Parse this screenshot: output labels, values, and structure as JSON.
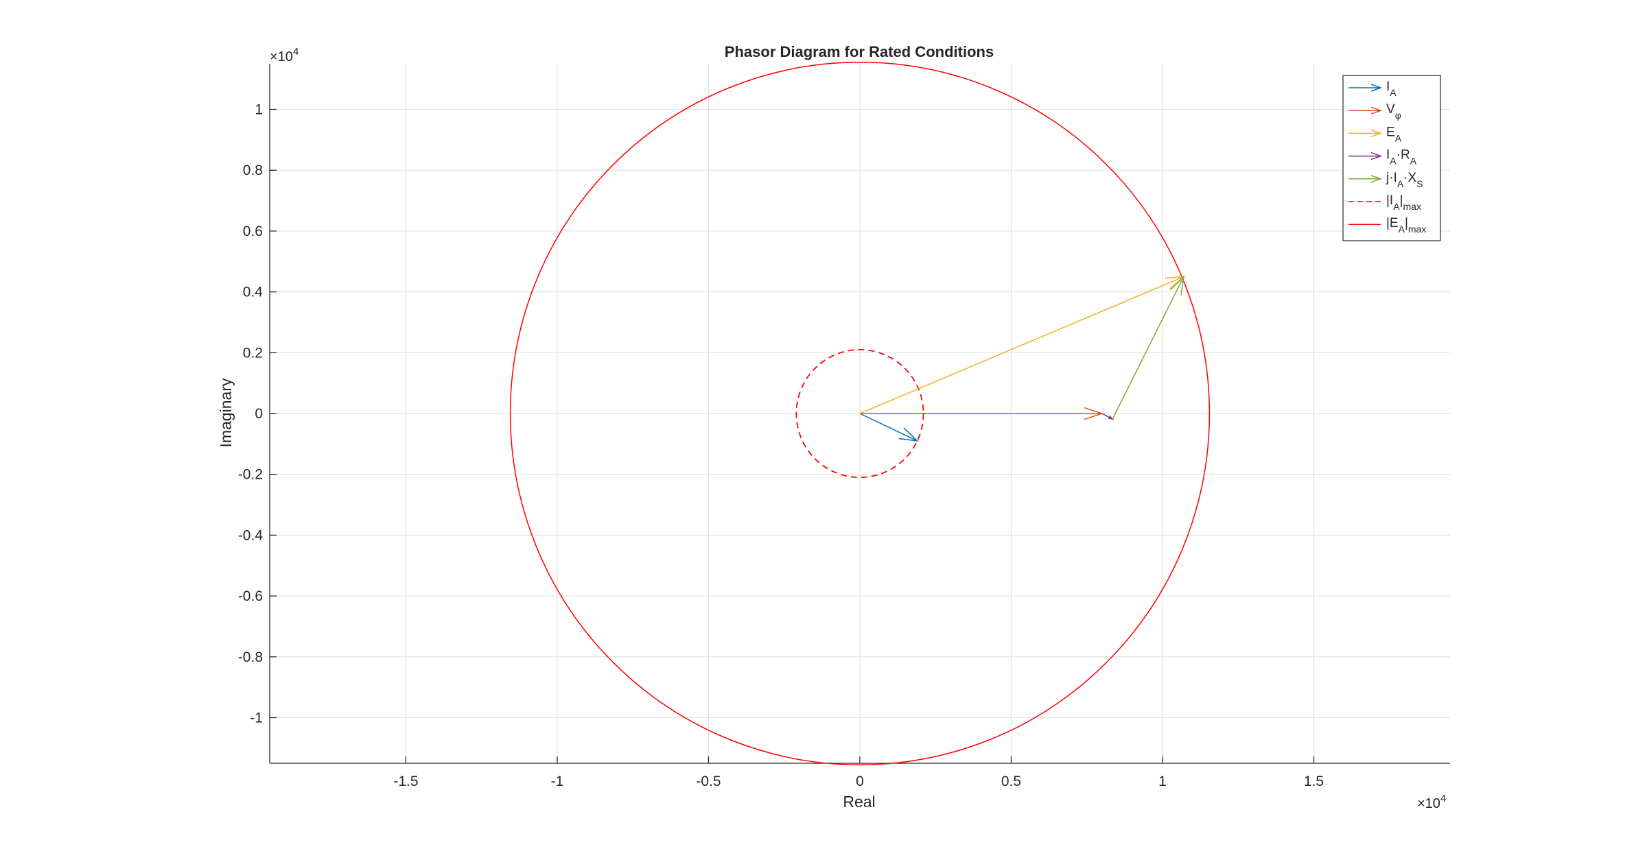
{
  "chart_data": {
    "type": "scatter",
    "title": "Phasor Diagram for Rated Conditions",
    "title_color": "#ff0000",
    "xlabel": "Real",
    "ylabel": "Imaginary",
    "x_exponent": {
      "base": "×10",
      "power": "4"
    },
    "y_exponent": {
      "base": "×10",
      "power": "4"
    },
    "xlim": [
      -19500,
      19500
    ],
    "ylim": [
      -11500,
      11500
    ],
    "grid": true,
    "box": false,
    "legend_placement": "top-right",
    "xticks": [
      {
        "value": -15000,
        "label": "-1.5"
      },
      {
        "value": -10000,
        "label": "-1"
      },
      {
        "value": -5000,
        "label": "-0.5"
      },
      {
        "value": 0,
        "label": "0"
      },
      {
        "value": 5000,
        "label": "0.5"
      },
      {
        "value": 10000,
        "label": "1"
      },
      {
        "value": 15000,
        "label": "1.5"
      }
    ],
    "yticks": [
      {
        "value": 10000,
        "label": "1"
      },
      {
        "value": 8000,
        "label": "0.8"
      },
      {
        "value": 6000,
        "label": "0.6"
      },
      {
        "value": 4000,
        "label": "0.4"
      },
      {
        "value": 2000,
        "label": "0.2"
      },
      {
        "value": 0,
        "label": "0"
      },
      {
        "value": -2000,
        "label": "-0.2"
      },
      {
        "value": -4000,
        "label": "-0.4"
      },
      {
        "value": -6000,
        "label": "-0.6"
      },
      {
        "value": -8000,
        "label": "-0.8"
      },
      {
        "value": -10000,
        "label": "-1"
      }
    ],
    "phasors": [
      {
        "id": "ia",
        "color": "#0072bd",
        "from": [
          0,
          0
        ],
        "to": [
          1900,
          -900
        ],
        "legend": [
          {
            "t": "I",
            "s": "n"
          },
          {
            "t": "A",
            "s": "sub"
          }
        ]
      },
      {
        "id": "vphi",
        "color": "#d95319",
        "from": [
          0,
          0
        ],
        "to": [
          8000,
          0
        ],
        "legend": [
          {
            "t": "V",
            "s": "n"
          },
          {
            "t": "φ",
            "s": "sub"
          }
        ]
      },
      {
        "id": "ea",
        "color": "#edb120",
        "from": [
          0,
          0
        ],
        "to": [
          10700,
          4500
        ],
        "legend": [
          {
            "t": "E",
            "s": "n"
          },
          {
            "t": "A",
            "s": "sub"
          }
        ]
      },
      {
        "id": "iara",
        "color": "#7e2f8e",
        "from": [
          8000,
          0
        ],
        "to": [
          8350,
          -180
        ],
        "legend": [
          {
            "t": "I",
            "s": "n"
          },
          {
            "t": "A",
            "s": "sub"
          },
          {
            "t": "·R",
            "s": "n"
          },
          {
            "t": "A",
            "s": "sub"
          }
        ]
      },
      {
        "id": "jiaxs",
        "color": "#77ac30",
        "from": [
          8350,
          -180
        ],
        "to": [
          10700,
          4500
        ],
        "legend": [
          {
            "t": "j·I",
            "s": "n"
          },
          {
            "t": "A",
            "s": "sub"
          },
          {
            "t": "·X",
            "s": "n"
          },
          {
            "t": "S",
            "s": "sub"
          }
        ]
      }
    ],
    "circles": [
      {
        "id": "ia-max",
        "color": "#ff0000",
        "radius": 2100,
        "dashed": true,
        "legend": [
          {
            "t": "|I",
            "s": "n"
          },
          {
            "t": "A",
            "s": "sub"
          },
          {
            "t": "|",
            "s": "n"
          },
          {
            "t": "max",
            "s": "sub"
          }
        ]
      },
      {
        "id": "ea-max",
        "color": "#ff0000",
        "radius": 11550,
        "dashed": false,
        "legend": [
          {
            "t": "|E",
            "s": "n"
          },
          {
            "t": "A",
            "s": "sub"
          },
          {
            "t": "|",
            "s": "n"
          },
          {
            "t": "max",
            "s": "sub"
          }
        ]
      }
    ]
  }
}
